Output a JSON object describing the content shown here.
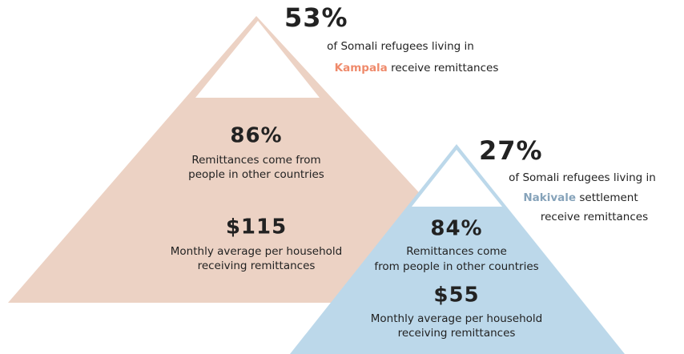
{
  "kampala": {
    "percent": "53%",
    "line1": "of Somali refugees living in",
    "place": "Kampala",
    "line2_rest": "receive remittances",
    "stat1": {
      "value": "86%",
      "lines": [
        "Remittances come from",
        "people in other countries"
      ]
    },
    "stat2": {
      "value": "$115",
      "lines": [
        "Monthly average per household",
        "receiving remittances"
      ]
    }
  },
  "nakivale": {
    "percent": "27%",
    "line1": "of Somali refugees living in",
    "place": "Nakivale",
    "line2_rest": "settlement",
    "line3": "receive remittances",
    "stat1": {
      "value": "84%",
      "lines": [
        "Remittances come",
        "from people in other countries"
      ]
    },
    "stat2": {
      "value": "$55",
      "lines": [
        "Monthly average per household",
        "receiving remittances"
      ]
    }
  }
}
